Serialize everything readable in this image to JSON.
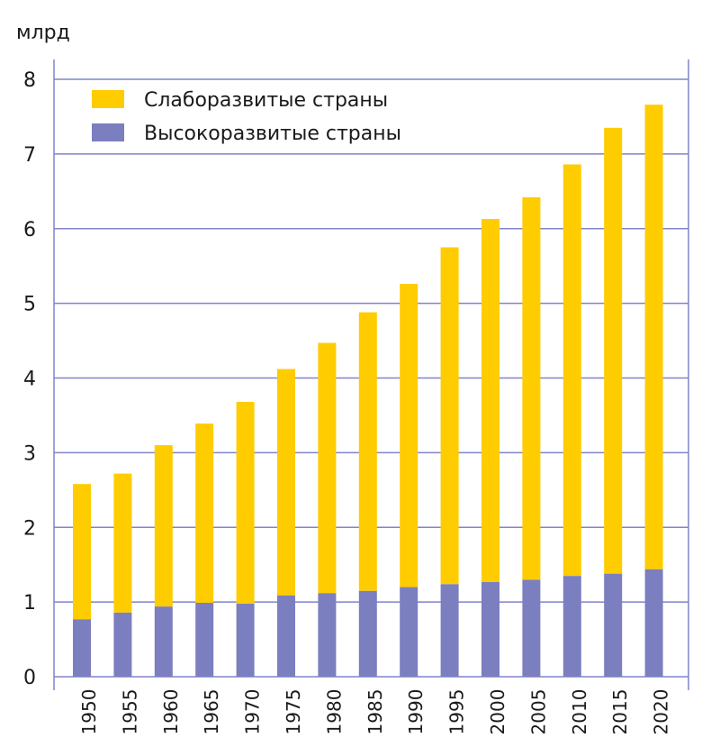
{
  "chart_data": {
    "type": "bar",
    "stacked": true,
    "unit": "млрд",
    "categories": [
      "1950",
      "1955",
      "1960",
      "1965",
      "1970",
      "1975",
      "1980",
      "1985",
      "1990",
      "1995",
      "2000",
      "2005",
      "2010",
      "2015",
      "2020"
    ],
    "series": [
      {
        "name": "Высокоразвитые страны",
        "color": "#7b7fbf",
        "values": [
          0.77,
          0.86,
          0.94,
          0.99,
          0.98,
          1.09,
          1.12,
          1.15,
          1.2,
          1.24,
          1.27,
          1.3,
          1.35,
          1.38,
          1.44
        ]
      },
      {
        "name": "Слаборазвитые страны",
        "color": "#ffcc00",
        "values": [
          1.81,
          1.86,
          2.16,
          2.4,
          2.7,
          3.03,
          3.35,
          3.73,
          4.06,
          4.51,
          4.86,
          5.12,
          5.51,
          5.97,
          6.22
        ]
      }
    ],
    "ylim": [
      0,
      8
    ],
    "yticks": [
      "0",
      "1",
      "2",
      "3",
      "4",
      "5",
      "6",
      "7",
      "8"
    ],
    "grid": true,
    "grid_color": "#7f85c8",
    "legend_placement": "top-left",
    "legend_order": [
      "Слаборазвитые страны",
      "Высокоразвитые страны"
    ]
  }
}
